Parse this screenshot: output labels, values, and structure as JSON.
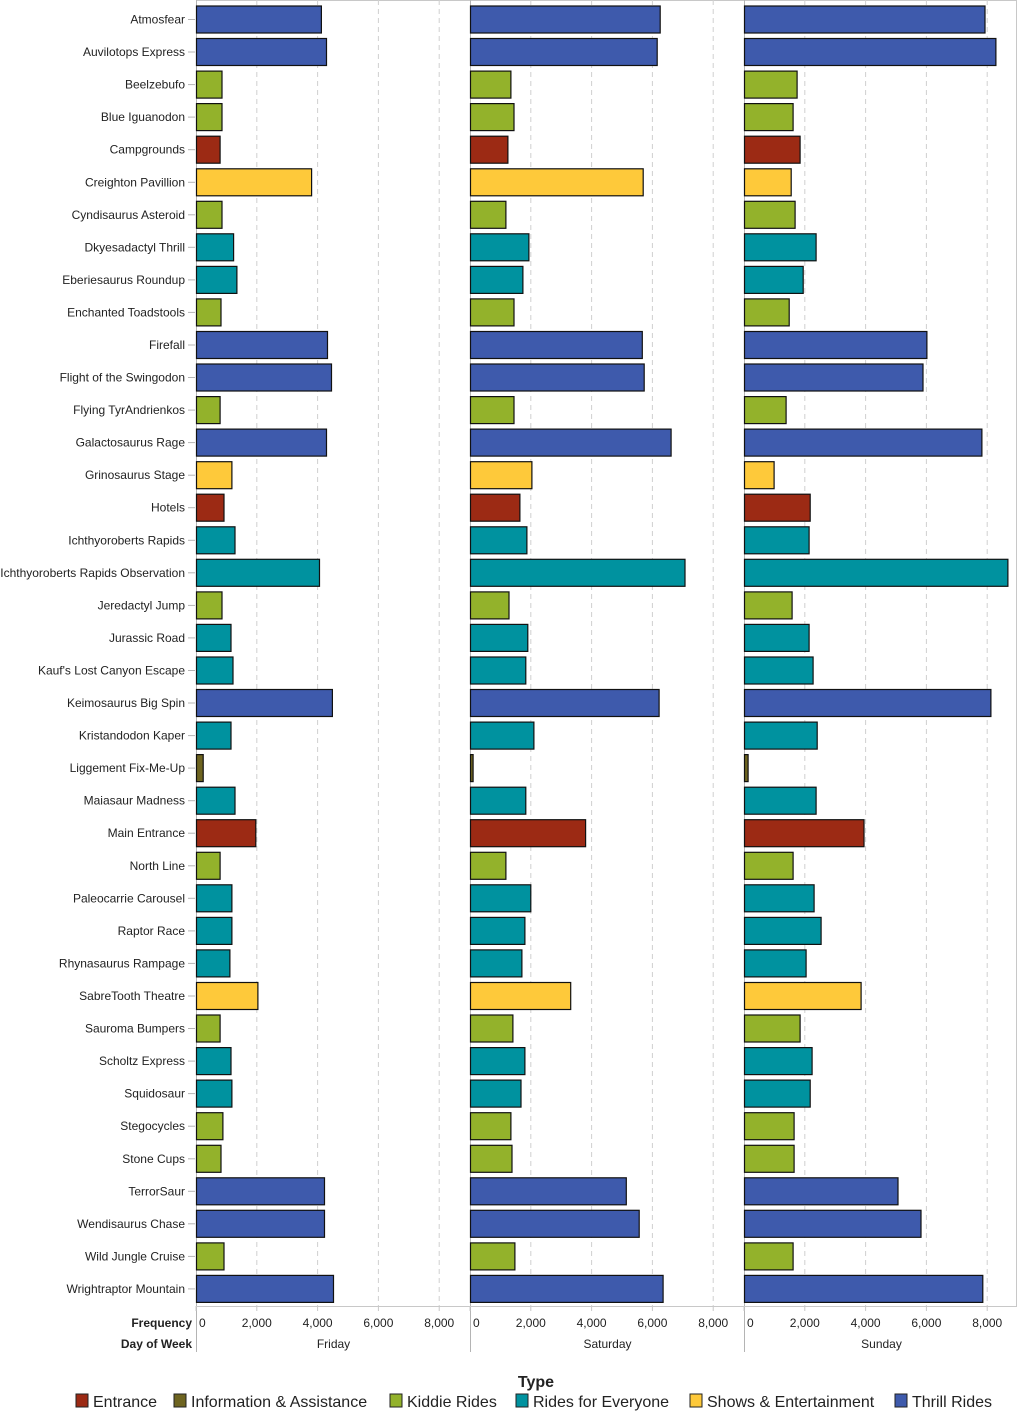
{
  "chart_data": {
    "type": "bar",
    "orientation": "horizontal",
    "facet_by": "Day of Week",
    "x_axis_label": "Frequency",
    "facet_axis_label": "Day of Week",
    "xlim": [
      0,
      8980
    ],
    "x_ticks": [
      0,
      2000,
      4000,
      6000,
      8000
    ],
    "x_tick_labels": [
      "0",
      "2,000",
      "4,000",
      "6,000",
      "8,000"
    ],
    "grid": true,
    "legend": {
      "title": "Type",
      "placement": "bottom",
      "items": [
        {
          "name": "Entrance",
          "color": "#9c2a14"
        },
        {
          "name": "Information & Assistance",
          "color": "#6e6420"
        },
        {
          "name": "Kiddie Rides",
          "color": "#93b22b"
        },
        {
          "name": "Rides for Everyone",
          "color": "#00929f"
        },
        {
          "name": "Shows & Entertainment",
          "color": "#fec93a"
        },
        {
          "name": "Thrill Rides",
          "color": "#3e5aac"
        }
      ]
    },
    "facets": [
      "Friday",
      "Saturday",
      "Sunday"
    ],
    "categories": [
      "Atmosfear",
      "Auvilotops Express",
      "Beelzebufo",
      "Blue Iguanodon",
      "Campgrounds",
      "Creighton Pavillion",
      "Cyndisaurus Asteroid",
      "Dkyesadactyl Thrill",
      "Eberiesaurus Roundup",
      "Enchanted Toadstools",
      "Firefall",
      "Flight of the Swingodon",
      "Flying TyrAndrienkos",
      "Galactosaurus Rage",
      "Grinosaurus Stage",
      "Hotels",
      "Ichthyoroberts Rapids",
      "Ichthyoroberts Rapids Observation",
      "Jeredactyl Jump",
      "Jurassic Road",
      "Kauf's Lost Canyon Escape",
      "Keimosaurus Big Spin",
      "Kristandodon Kaper",
      "Liggement Fix-Me-Up",
      "Maiasaur Madness",
      "Main Entrance",
      "North Line",
      "Paleocarrie Carousel",
      "Raptor Race",
      "Rhynasaurus Rampage",
      "SabreTooth Theatre",
      "Sauroma Bumpers",
      "Scholtz Express",
      "Squidosaur",
      "Stegocycles",
      "Stone Cups",
      "TerrorSaur",
      "Wendisaurus Chase",
      "Wild Jungle Cruise",
      "Wrightraptor Mountain"
    ],
    "category_types": [
      "Thrill Rides",
      "Thrill Rides",
      "Kiddie Rides",
      "Kiddie Rides",
      "Entrance",
      "Shows & Entertainment",
      "Kiddie Rides",
      "Rides for Everyone",
      "Rides for Everyone",
      "Kiddie Rides",
      "Thrill Rides",
      "Thrill Rides",
      "Kiddie Rides",
      "Thrill Rides",
      "Shows & Entertainment",
      "Entrance",
      "Rides for Everyone",
      "Rides for Everyone",
      "Kiddie Rides",
      "Rides for Everyone",
      "Rides for Everyone",
      "Thrill Rides",
      "Rides for Everyone",
      "Information & Assistance",
      "Rides for Everyone",
      "Entrance",
      "Kiddie Rides",
      "Rides for Everyone",
      "Rides for Everyone",
      "Rides for Everyone",
      "Shows & Entertainment",
      "Kiddie Rides",
      "Rides for Everyone",
      "Rides for Everyone",
      "Kiddie Rides",
      "Kiddie Rides",
      "Thrill Rides",
      "Thrill Rides",
      "Kiddie Rides",
      "Thrill Rides"
    ],
    "series": [
      {
        "name": "Friday",
        "values": [
          4110,
          4275,
          840,
          840,
          775,
          3785,
          840,
          1220,
          1330,
          805,
          4310,
          4440,
          775,
          4275,
          1165,
          905,
          1265,
          4045,
          840,
          1135,
          1200,
          4470,
          1135,
          220,
          1265,
          1950,
          775,
          1165,
          1165,
          1100,
          2020,
          775,
          1135,
          1165,
          870,
          805,
          4210,
          4210,
          905,
          4505
        ]
      },
      {
        "name": "Saturday",
        "values": [
          6240,
          6140,
          1330,
          1430,
          1230,
          5680,
          1165,
          1920,
          1725,
          1430,
          5650,
          5715,
          1430,
          6600,
          2020,
          1625,
          1855,
          7055,
          1265,
          1885,
          1820,
          6205,
          2085,
          85,
          1820,
          3785,
          1165,
          1985,
          1790,
          1690,
          3295,
          1395,
          1790,
          1660,
          1330,
          1365,
          5125,
          5550,
          1460,
          6335
        ]
      },
      {
        "name": "Sunday",
        "values": [
          7910,
          8270,
          1730,
          1600,
          1830,
          1535,
          1665,
          2355,
          1930,
          1470,
          6000,
          5870,
          1370,
          7810,
          975,
          2160,
          2125,
          8665,
          1565,
          2125,
          2255,
          8105,
          2390,
          120,
          2355,
          3930,
          1600,
          2290,
          2520,
          2025,
          3835,
          1830,
          2225,
          2160,
          1630,
          1630,
          5050,
          5805,
          1600,
          7840
        ]
      }
    ]
  }
}
